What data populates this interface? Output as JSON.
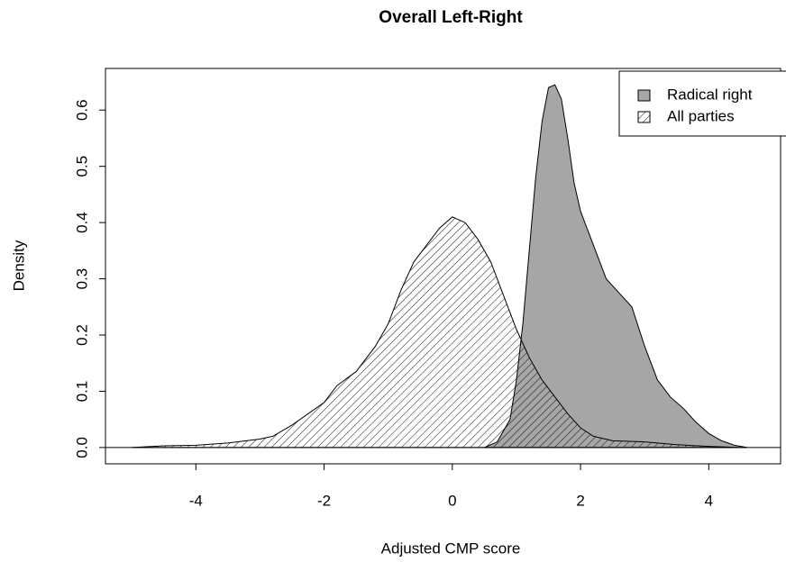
{
  "chart_data": {
    "type": "density",
    "title": "Overall Left-Right",
    "xlabel": "Adjusted CMP score",
    "ylabel": "Density",
    "xlim": [
      -5.41,
      5.12
    ],
    "ylim": [
      -0.029,
      0.674
    ],
    "xticks": [
      -4,
      -2,
      0,
      2,
      4
    ],
    "yticks": [
      {
        "value": 0,
        "label": "0.0"
      },
      {
        "value": 0.1,
        "label": "0.1"
      },
      {
        "value": 0.2,
        "label": "0.2"
      },
      {
        "value": 0.3,
        "label": "0.3"
      },
      {
        "value": 0.4,
        "label": "0.4"
      },
      {
        "value": 0.5,
        "label": "0.5"
      },
      {
        "value": 0.6,
        "label": "0.6"
      }
    ],
    "legend": "top-right",
    "series": [
      {
        "name": "Radical right",
        "color": "#a6a6a6",
        "hatch": false,
        "x": [
          0.5,
          0.7,
          0.9,
          1.0,
          1.1,
          1.2,
          1.3,
          1.4,
          1.5,
          1.6,
          1.7,
          1.8,
          1.9,
          2.0,
          2.2,
          2.4,
          2.6,
          2.8,
          3.0,
          3.2,
          3.4,
          3.6,
          3.8,
          4.0,
          4.2,
          4.4,
          4.6
        ],
        "values": [
          0,
          0.01,
          0.05,
          0.12,
          0.22,
          0.35,
          0.48,
          0.58,
          0.64,
          0.645,
          0.62,
          0.55,
          0.47,
          0.42,
          0.36,
          0.3,
          0.275,
          0.25,
          0.18,
          0.12,
          0.09,
          0.07,
          0.045,
          0.025,
          0.012,
          0.004,
          0
        ]
      },
      {
        "name": "All parties",
        "color": "#000000",
        "hatch": true,
        "x": [
          -5,
          -4.5,
          -4,
          -3.5,
          -3,
          -2.8,
          -2.5,
          -2,
          -1.8,
          -1.5,
          -1.2,
          -1,
          -0.8,
          -0.6,
          -0.4,
          -0.2,
          0,
          0.2,
          0.4,
          0.6,
          0.8,
          1,
          1.2,
          1.4,
          1.6,
          1.8,
          2,
          2.2,
          2.5,
          3,
          3.5,
          4,
          4.5
        ],
        "values": [
          0,
          0.003,
          0.004,
          0.008,
          0.015,
          0.02,
          0.04,
          0.08,
          0.11,
          0.135,
          0.18,
          0.22,
          0.28,
          0.33,
          0.36,
          0.39,
          0.41,
          0.4,
          0.37,
          0.33,
          0.27,
          0.21,
          0.16,
          0.12,
          0.09,
          0.06,
          0.035,
          0.02,
          0.012,
          0.01,
          0.005,
          0.002,
          0
        ]
      }
    ]
  }
}
